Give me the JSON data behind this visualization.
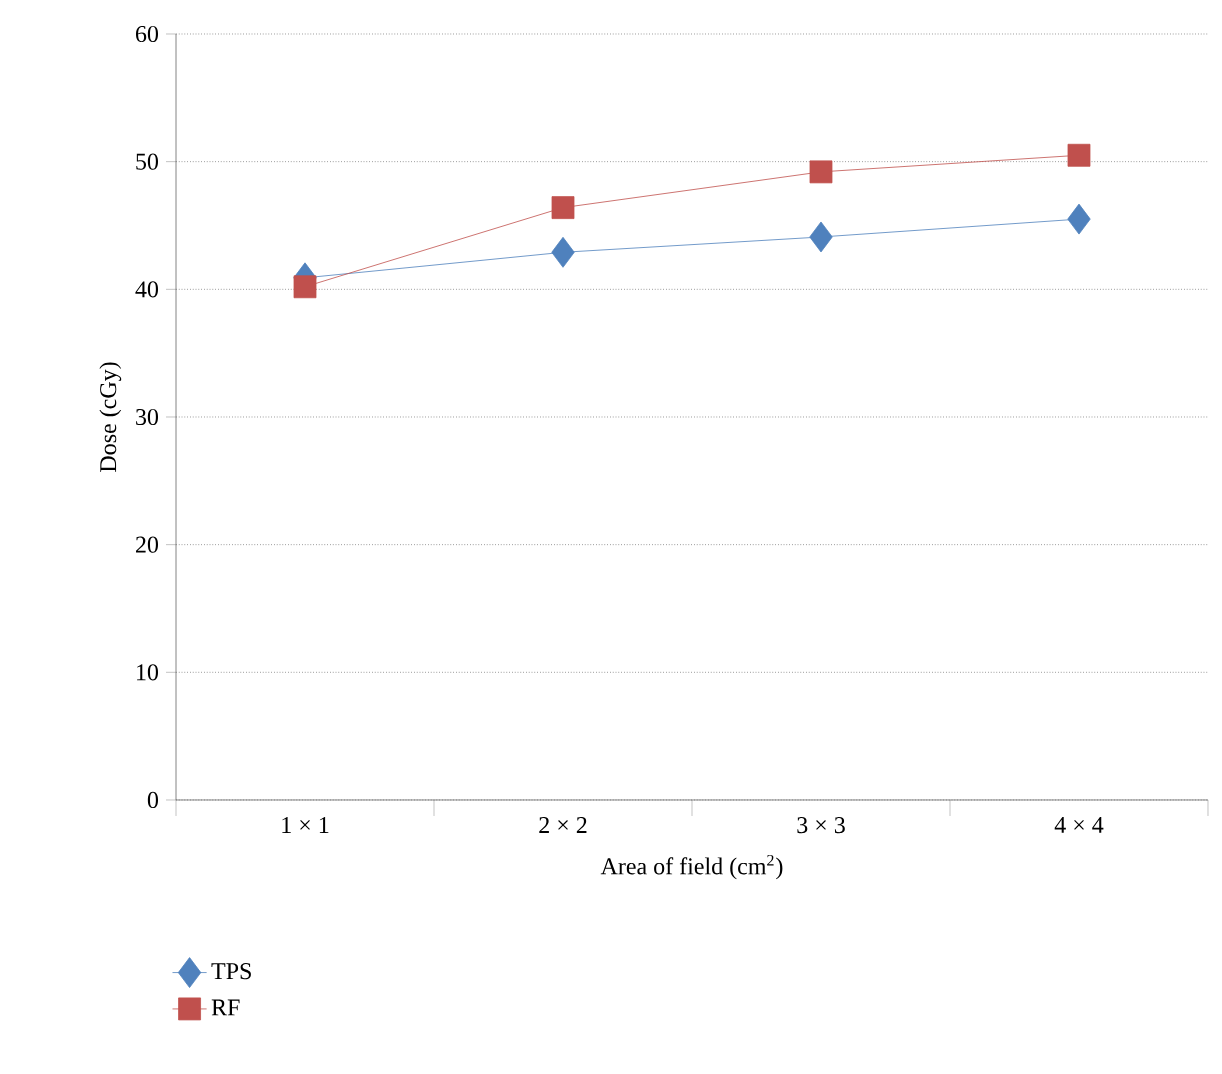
{
  "chart_data": {
    "type": "line",
    "xlabel": "Area of field (cm$^{2}$)",
    "ylabel": "Dose (cGy)",
    "categories": [
      "1 × 1",
      "2 × 2",
      "3 × 3",
      "4 × 4"
    ],
    "series": [
      {
        "name": "TPS",
        "color": "#4f81bd",
        "marker": "diamond",
        "values": [
          40.9,
          42.9,
          44.1,
          45.5
        ]
      },
      {
        "name": "RF",
        "color": "#c0504d",
        "marker": "square",
        "values": [
          40.2,
          46.4,
          49.2,
          50.5
        ]
      }
    ],
    "ylim": [
      0,
      60
    ],
    "yticks": [
      0,
      10,
      20,
      30,
      40,
      50,
      60
    ],
    "grid": "y",
    "legend": "bottom left"
  }
}
